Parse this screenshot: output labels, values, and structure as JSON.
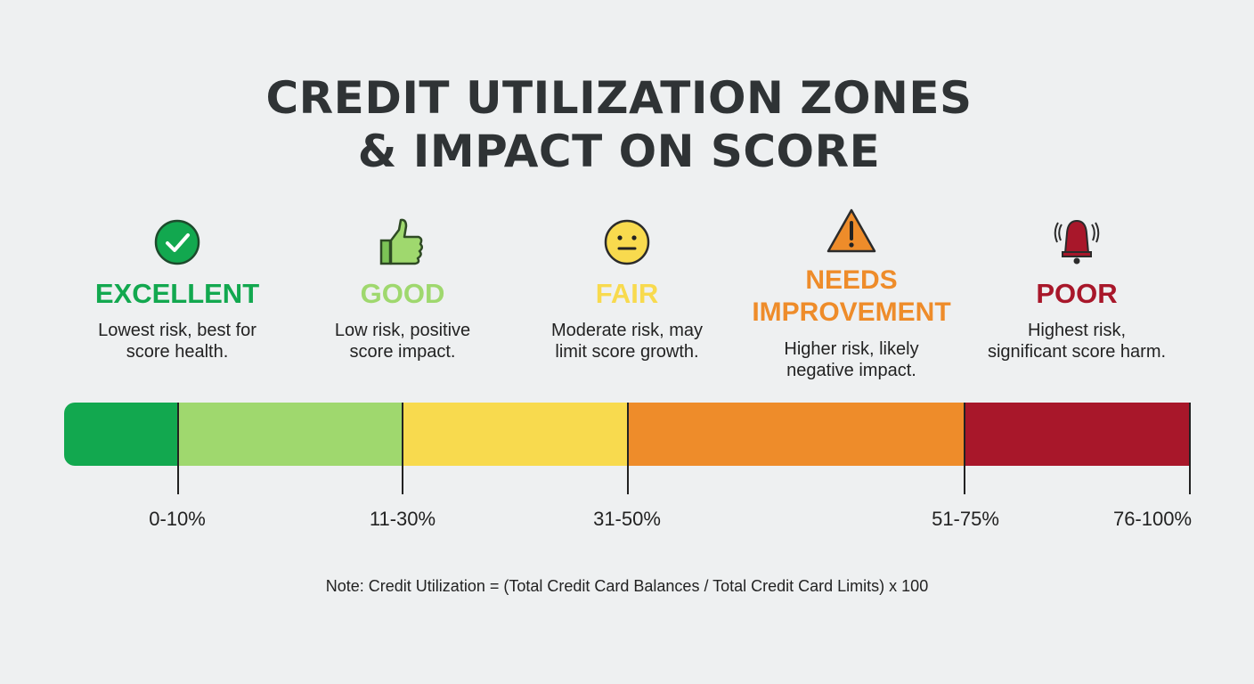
{
  "title": {
    "line1": "CREDIT UTILIZATION ZONES",
    "line2": "& IMPACT ON SCORE"
  },
  "zones": [
    {
      "name": "EXCELLENT",
      "desc1": "Lowest risk, best for",
      "desc2": "score health.",
      "range": "0-10%",
      "color": "#12a84f",
      "icon": "check-circle-icon"
    },
    {
      "name": "GOOD",
      "desc1": "Low risk, positive",
      "desc2": "score impact.",
      "range": "11-30%",
      "color": "#9fd86e",
      "icon": "thumbs-up-icon"
    },
    {
      "name": "FAIR",
      "desc1": "Moderate risk, may",
      "desc2": "limit score growth.",
      "range": "31-50%",
      "color": "#f8da4e",
      "icon": "neutral-face-icon"
    },
    {
      "name1": "NEEDS",
      "name2": "IMPROVEMENT",
      "desc1": "Higher risk, likely",
      "desc2": "negative impact.",
      "range": "51-75%",
      "color": "#ee8c2a",
      "icon": "warning-icon"
    },
    {
      "name": "POOR",
      "desc1": "Highest risk,",
      "desc2": "significant score harm.",
      "range": "76-100%",
      "color": "#a8172a",
      "icon": "alarm-bell-icon"
    }
  ],
  "note": "Note: Credit Utilization = (Total Credit Card Balances / Total Credit Card Limits) x 100"
}
